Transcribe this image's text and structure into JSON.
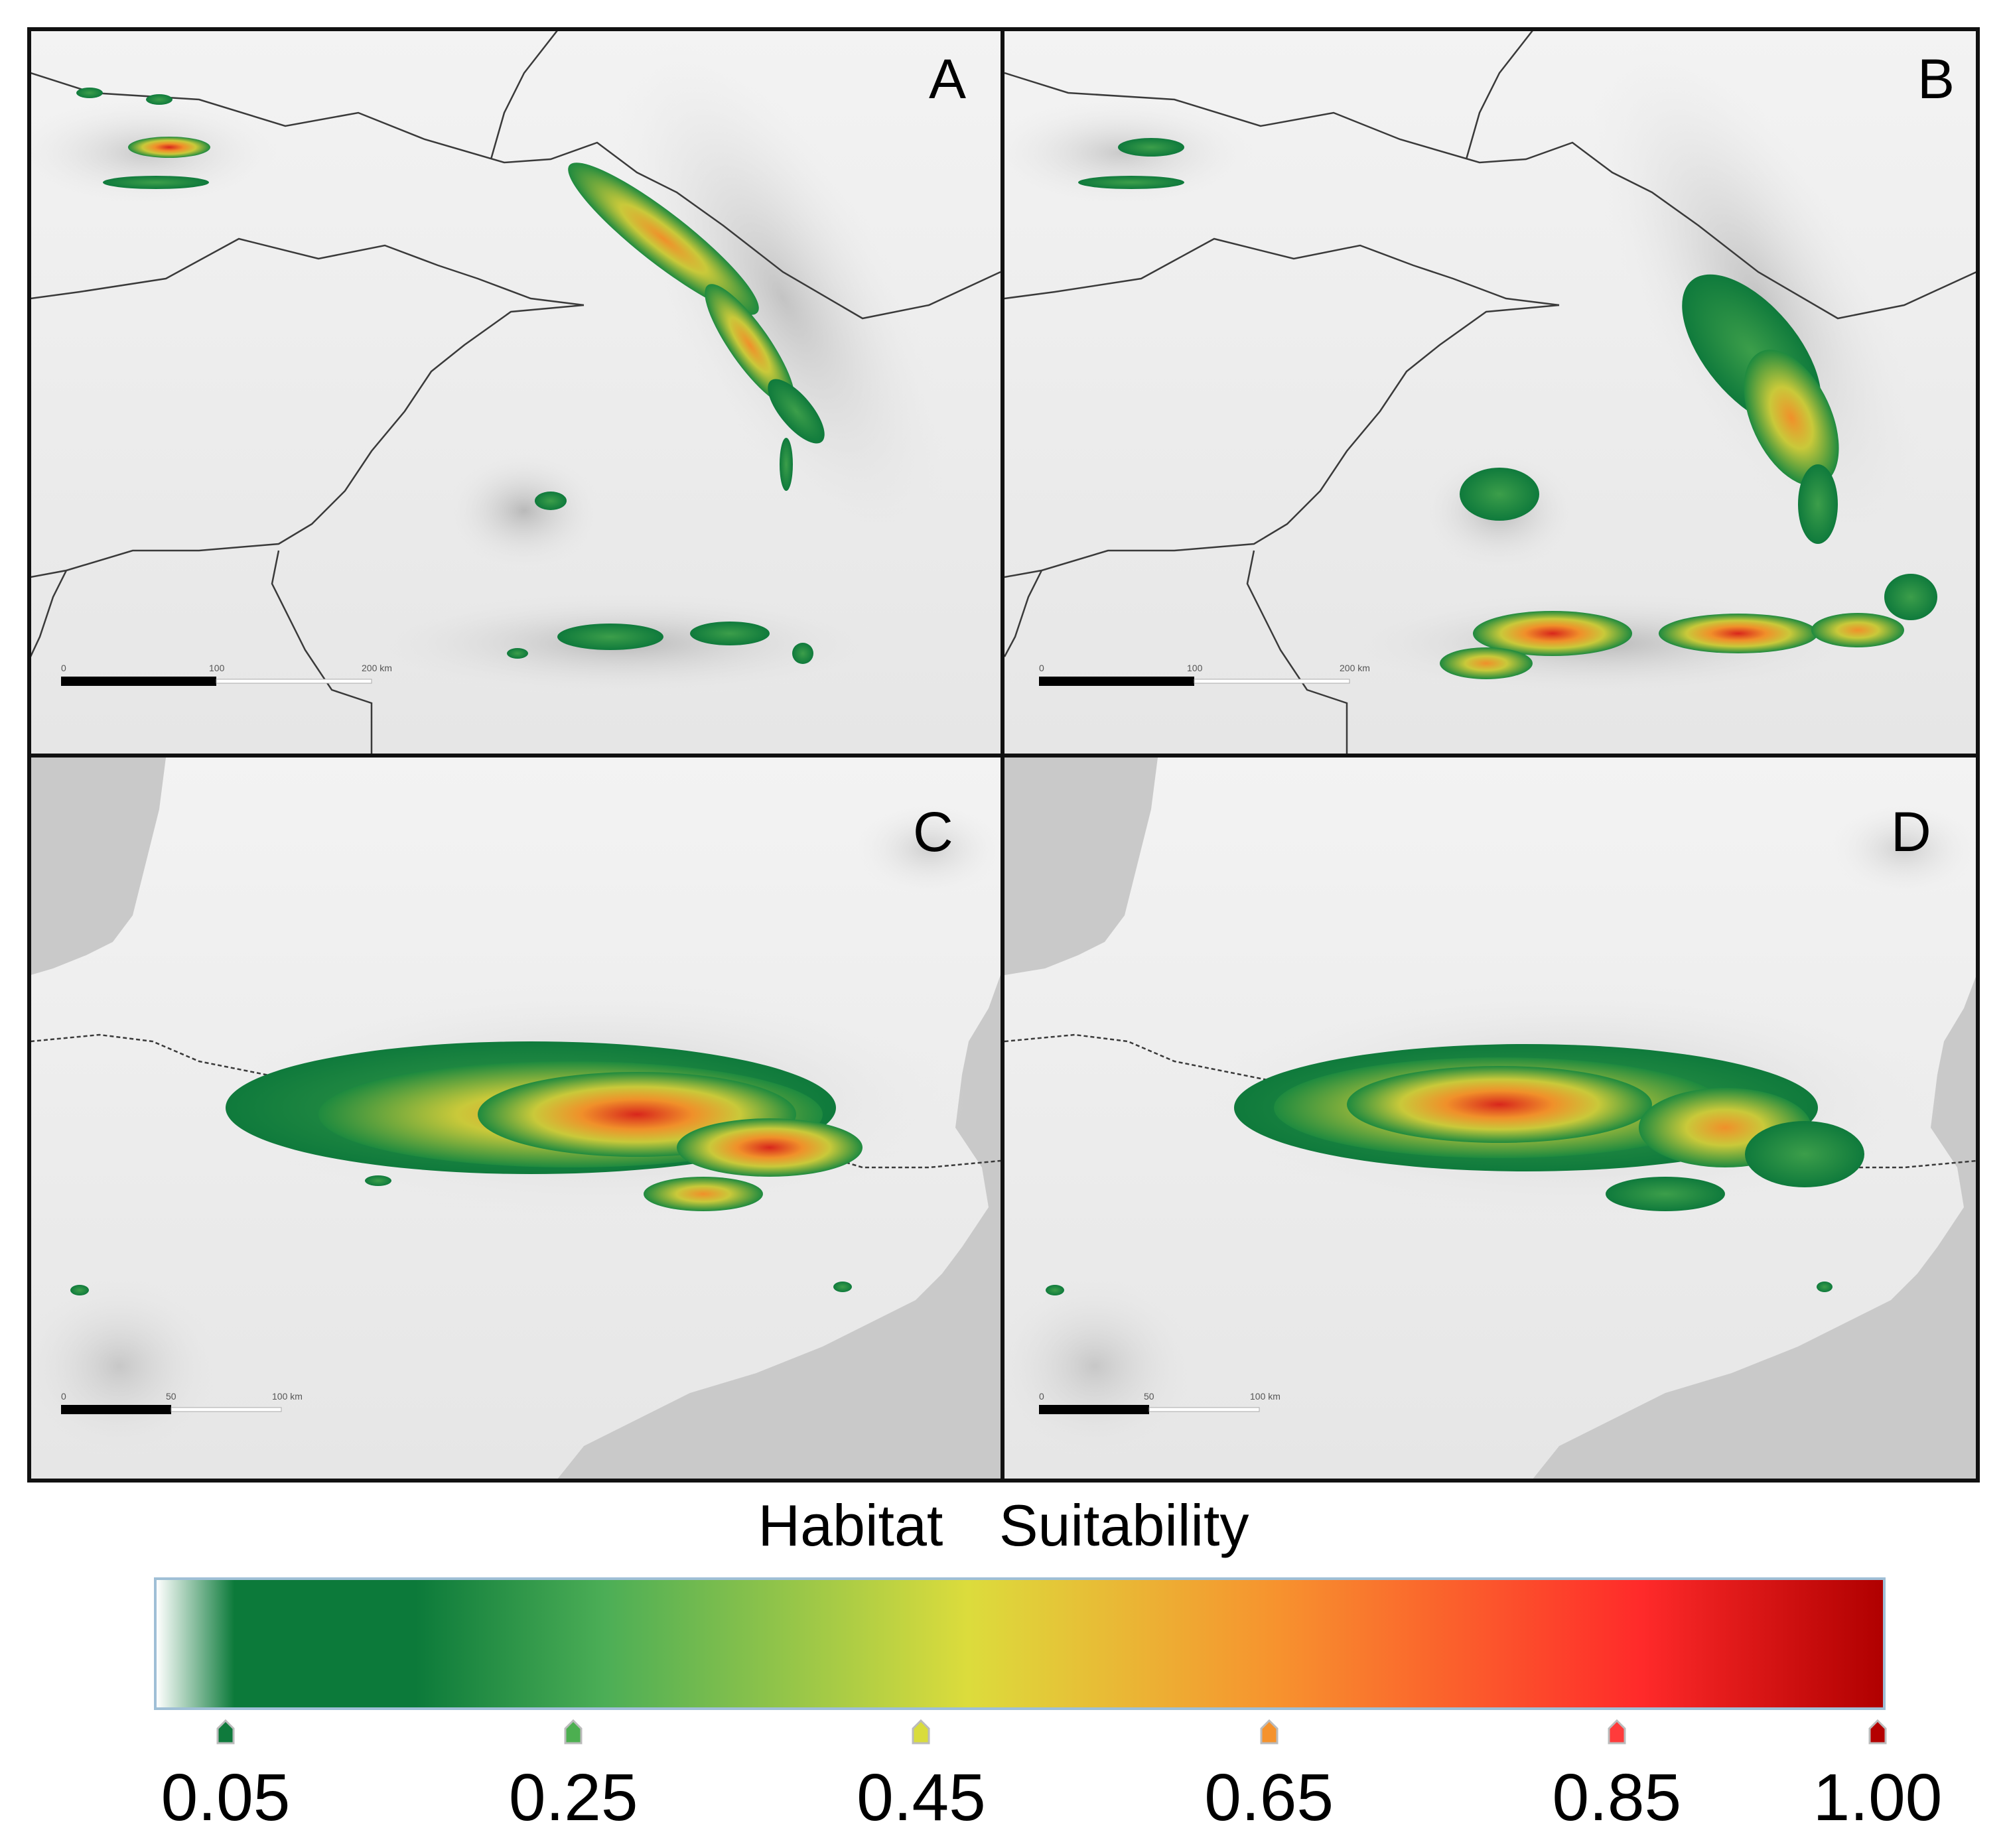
{
  "figure": {
    "panels": [
      {
        "id": "A",
        "label": "A",
        "scale": {
          "ticks": [
            "0",
            "100",
            "200 km"
          ]
        }
      },
      {
        "id": "B",
        "label": "B",
        "scale": {
          "ticks": [
            "0",
            "100",
            "200 km"
          ]
        }
      },
      {
        "id": "C",
        "label": "C",
        "scale": {
          "ticks": [
            "0",
            "50",
            "100 km"
          ]
        }
      },
      {
        "id": "D",
        "label": "D",
        "scale": {
          "ticks": [
            "0",
            "50",
            "100 km"
          ]
        }
      }
    ]
  },
  "legend": {
    "title_word1": "Habitat",
    "title_word2": "Suitability",
    "min_value": 0.05,
    "max_value": 1.0,
    "ticks": [
      {
        "label": "0.05",
        "value": 0.05,
        "color": "#0f7a3c"
      },
      {
        "label": "0.25",
        "value": 0.25,
        "color": "#4caf50"
      },
      {
        "label": "0.45",
        "value": 0.45,
        "color": "#d9dc3c"
      },
      {
        "label": "0.65",
        "value": 0.65,
        "color": "#f5922c"
      },
      {
        "label": "0.85",
        "value": 0.85,
        "color": "#ff3b3b"
      },
      {
        "label": "1.00",
        "value": 1.0,
        "color": "#b40000"
      }
    ],
    "gradient_colors": {
      "white": "#ffffff",
      "dark_green": "#0c7a3a",
      "green": "#4cae56",
      "yellow": "#dcdc3c",
      "orange": "#f7922e",
      "red": "#ff2a2a",
      "dark_red": "#b00000"
    }
  },
  "colors": {
    "panel_border": "#111111",
    "map_background": "#ebebeb",
    "sea": "#c9c9c9",
    "border_line": "#3a3a3a",
    "legend_border": "#9fbfd6"
  }
}
